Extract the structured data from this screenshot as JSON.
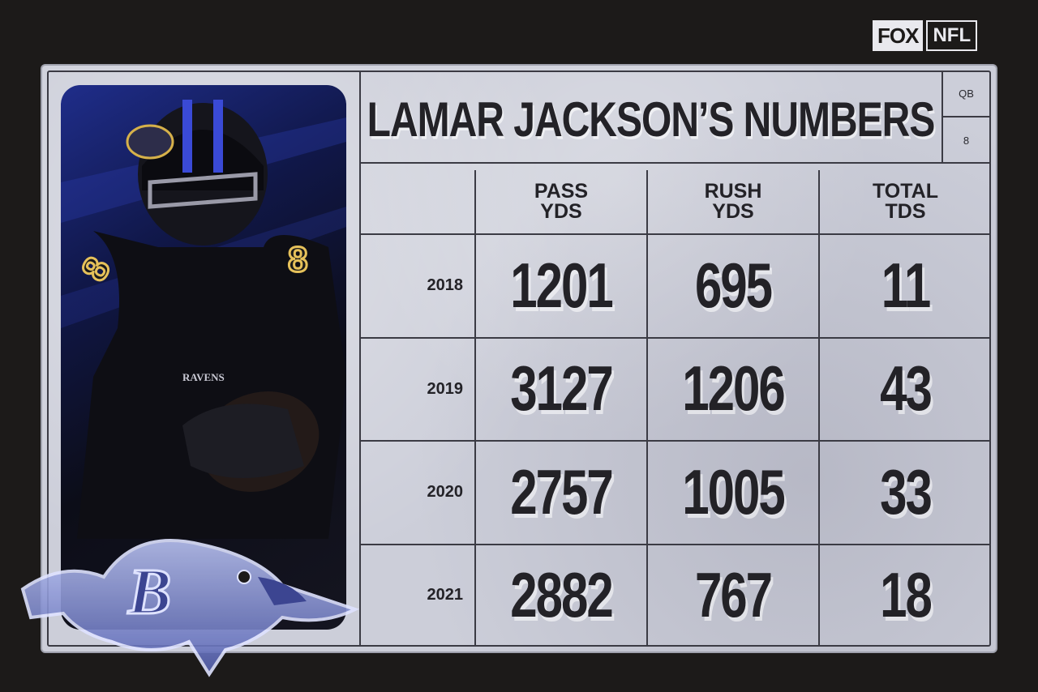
{
  "brand": {
    "network": "FOX",
    "league": "NFL"
  },
  "header": {
    "title": "LAMAR JACKSON’S NUMBERS",
    "position": "QB",
    "jersey_number": "8"
  },
  "photo": {
    "jersey_text": "RAVENS",
    "number": "8"
  },
  "table": {
    "columns": [
      {
        "line1": "PASS",
        "line2": "YDS"
      },
      {
        "line1": "RUSH",
        "line2": "YDS"
      },
      {
        "line1": "TOTAL",
        "line2": "TDS"
      }
    ],
    "rows": [
      {
        "year": "2018",
        "pass_yds": "1201",
        "rush_yds": "695",
        "total_tds": "11"
      },
      {
        "year": "2019",
        "pass_yds": "3127",
        "rush_yds": "1206",
        "total_tds": "43"
      },
      {
        "year": "2020",
        "pass_yds": "2757",
        "rush_yds": "1005",
        "total_tds": "33"
      },
      {
        "year": "2021",
        "pass_yds": "2882",
        "rush_yds": "767",
        "total_tds": "18"
      }
    ]
  },
  "logo": {
    "letter": "B"
  }
}
